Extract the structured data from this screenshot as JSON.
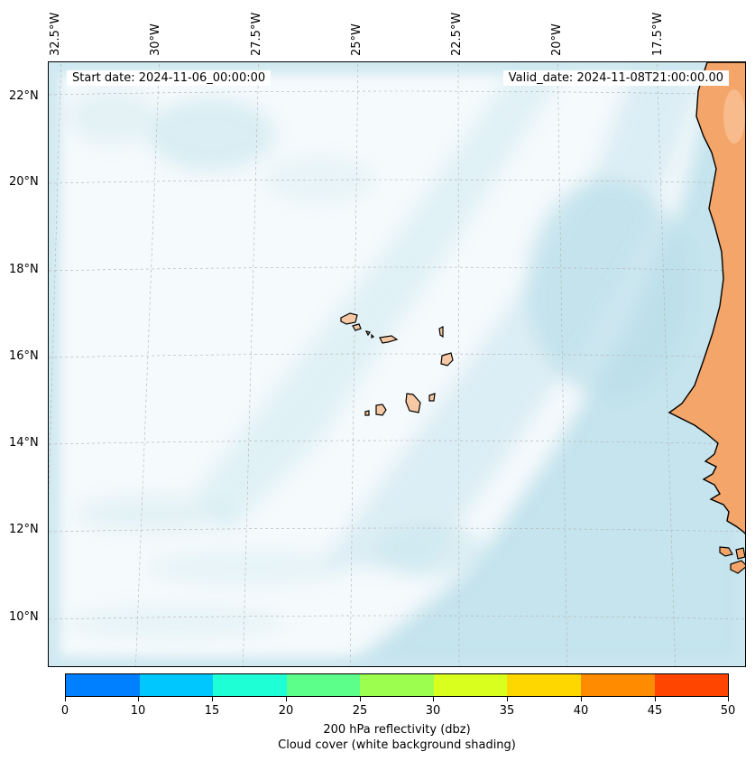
{
  "map": {
    "start_date_label": "Start date: 2024-11-06_00:00:00",
    "valid_date_label": "Valid_date: 2024-11-08T21:00:00.00",
    "lon_labels": [
      "32.5°W",
      "30°W",
      "27.5°W",
      "25°W",
      "22.5°W",
      "20°W",
      "17.5°W"
    ],
    "lat_labels": [
      "22°N",
      "20°N",
      "18°N",
      "16°N",
      "14°N",
      "12°N",
      "10°N"
    ],
    "land_color": "#f4a66a",
    "island_color": "#f6c9a4",
    "cloud_color": "#add8e6"
  },
  "colorbar": {
    "ticks": [
      "0",
      "10",
      "15",
      "20",
      "25",
      "30",
      "35",
      "40",
      "45",
      "50"
    ],
    "colors": [
      "#0080ff",
      "#00c8ff",
      "#1effd6",
      "#5cff8a",
      "#9cff50",
      "#d8ff1e",
      "#ffd700",
      "#ff8c00",
      "#ff4500"
    ],
    "title_line1": "200 hPa reflectivity (dbz)",
    "title_line2": "Cloud cover (white background shading)"
  }
}
